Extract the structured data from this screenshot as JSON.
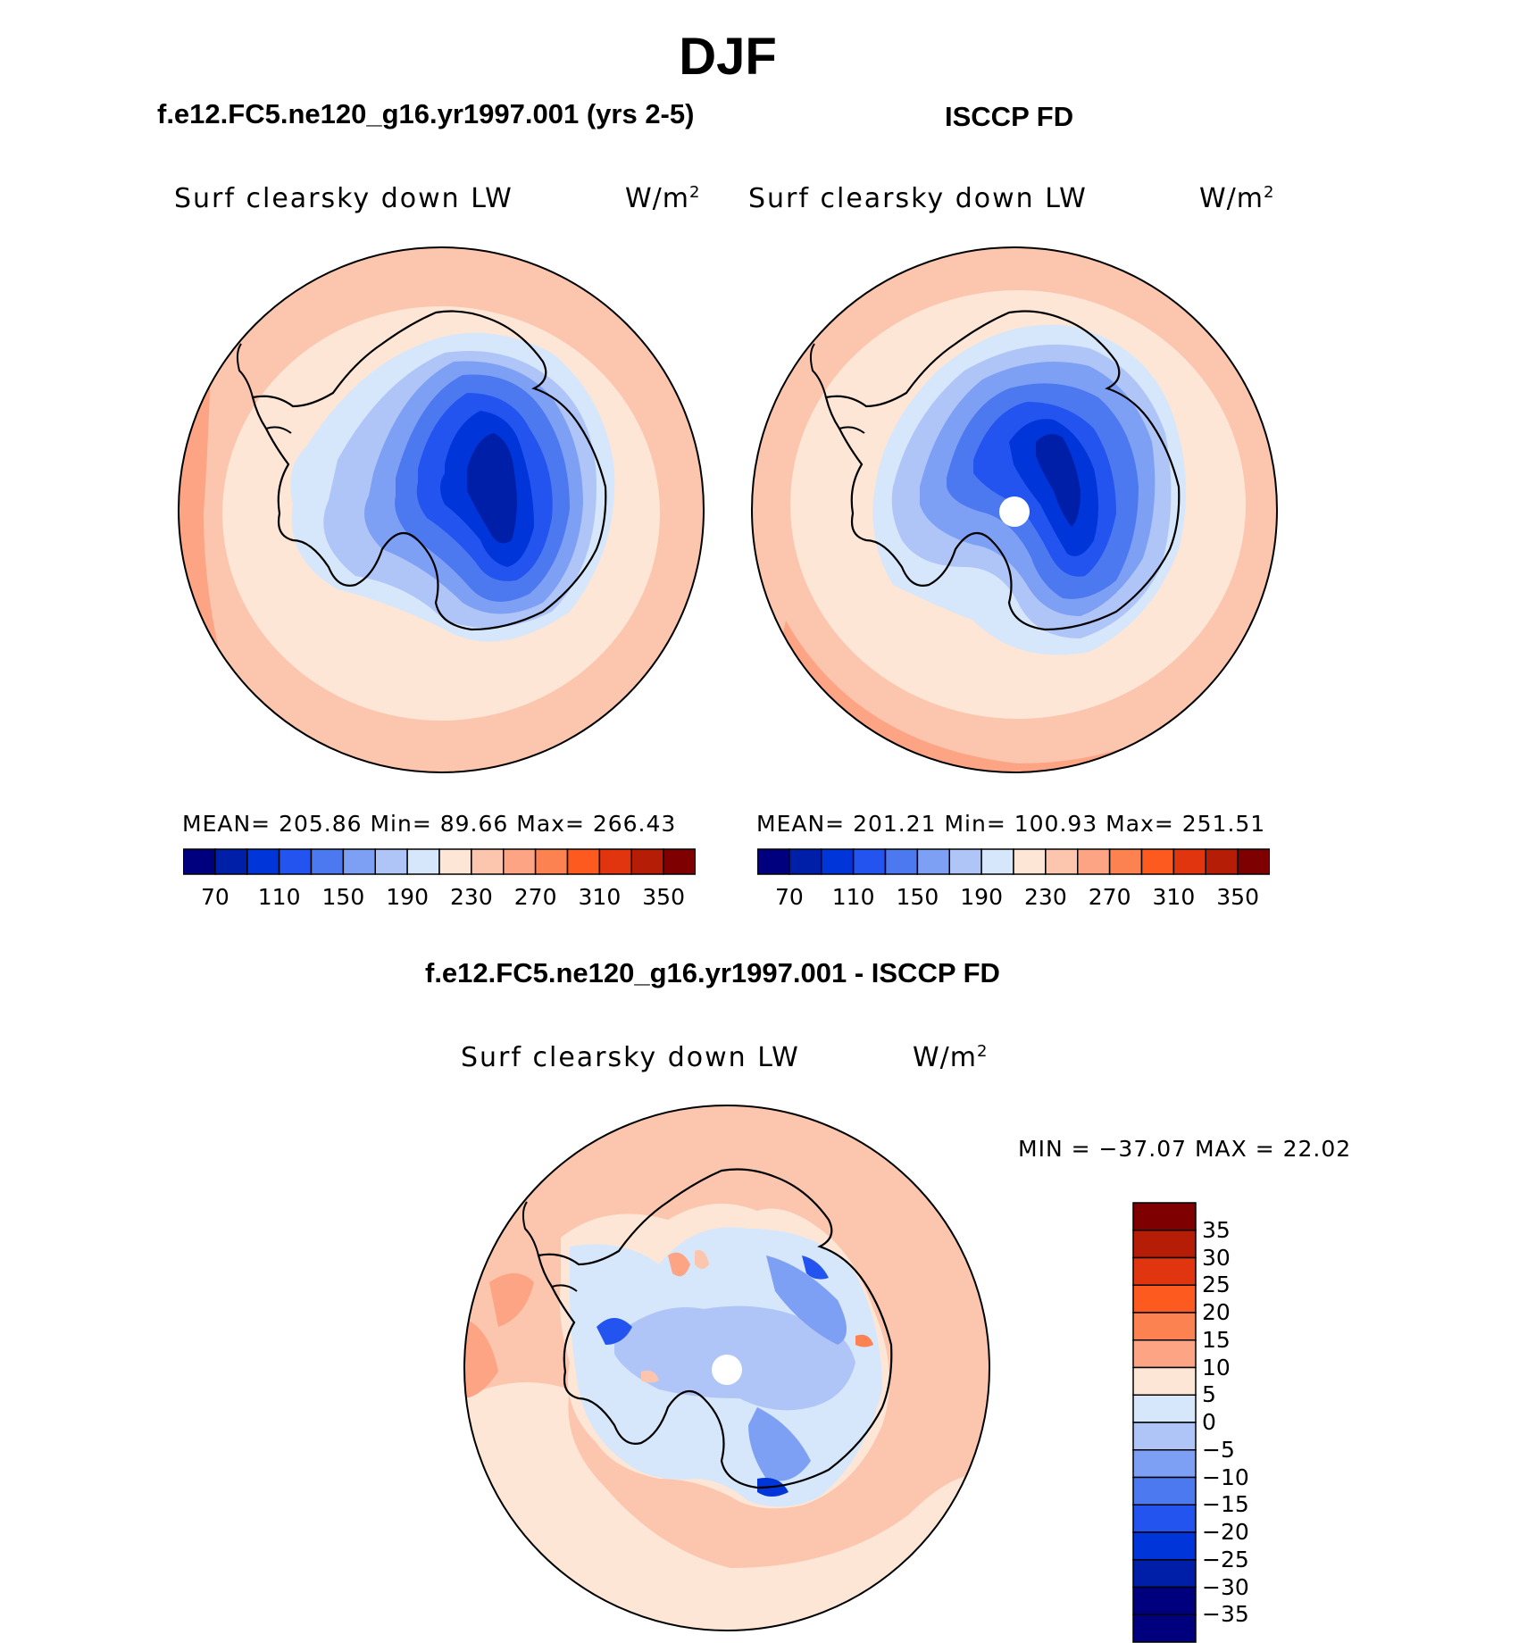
{
  "page": {
    "season_title": "DJF"
  },
  "panels": [
    {
      "title": "f.e12.FC5.ne120_g16.yr1997.001 (yrs 2-5)",
      "variable": "Surf clearsky down LW",
      "units": "W/m",
      "units_sup": "2",
      "stats": "MEAN= 205.86   Min=   89.66   Max= 266.43",
      "colorbar": {
        "labels": [
          "70",
          "110",
          "150",
          "190",
          "230",
          "270",
          "310",
          "350"
        ],
        "colors": [
          "#00007f",
          "#001fa8",
          "#0035d9",
          "#2354f0",
          "#4d79f0",
          "#7ea0f4",
          "#afc5f7",
          "#d6e6fb",
          "#fde6d6",
          "#fcc5ad",
          "#fca484",
          "#fc8252",
          "#fc5a1e",
          "#e0350e",
          "#b51d06",
          "#7f0000"
        ]
      },
      "map": {
        "pole_missing": false
      }
    },
    {
      "title": "ISCCP FD",
      "variable": "Surf clearsky down LW",
      "units": "W/m",
      "units_sup": "2",
      "stats": "MEAN= 201.21   Min= 100.93   Max= 251.51",
      "colorbar": {
        "labels": [
          "70",
          "110",
          "150",
          "190",
          "230",
          "270",
          "310",
          "350"
        ],
        "colors": [
          "#00007f",
          "#001fa8",
          "#0035d9",
          "#2354f0",
          "#4d79f0",
          "#7ea0f4",
          "#afc5f7",
          "#d6e6fb",
          "#fde6d6",
          "#fcc5ad",
          "#fca484",
          "#fc8252",
          "#fc5a1e",
          "#e0350e",
          "#b51d06",
          "#7f0000"
        ]
      },
      "map": {
        "pole_missing": true
      }
    },
    {
      "title": "f.e12.FC5.ne120_g16.yr1997.001 - ISCCP FD",
      "variable": "Surf clearsky down LW",
      "units": "W/m",
      "units_sup": "2",
      "stats": "MIN =  −37.07  MAX =    22.02",
      "colorbar": {
        "labels": [
          "35",
          "30",
          "25",
          "20",
          "15",
          "10",
          "5",
          "0",
          "−5",
          "−10",
          "−15",
          "−20",
          "−25",
          "−30",
          "−35"
        ],
        "colors": [
          "#7f0000",
          "#b51d06",
          "#e0350e",
          "#fc5a1e",
          "#fc8252",
          "#fca484",
          "#fde6d6",
          "#d6e6fb",
          "#afc5f7",
          "#7ea0f4",
          "#4d79f0",
          "#2354f0",
          "#0035d9",
          "#001fa8",
          "#00007f",
          "#00007f"
        ]
      },
      "map": {
        "pole_missing": true
      }
    }
  ]
}
